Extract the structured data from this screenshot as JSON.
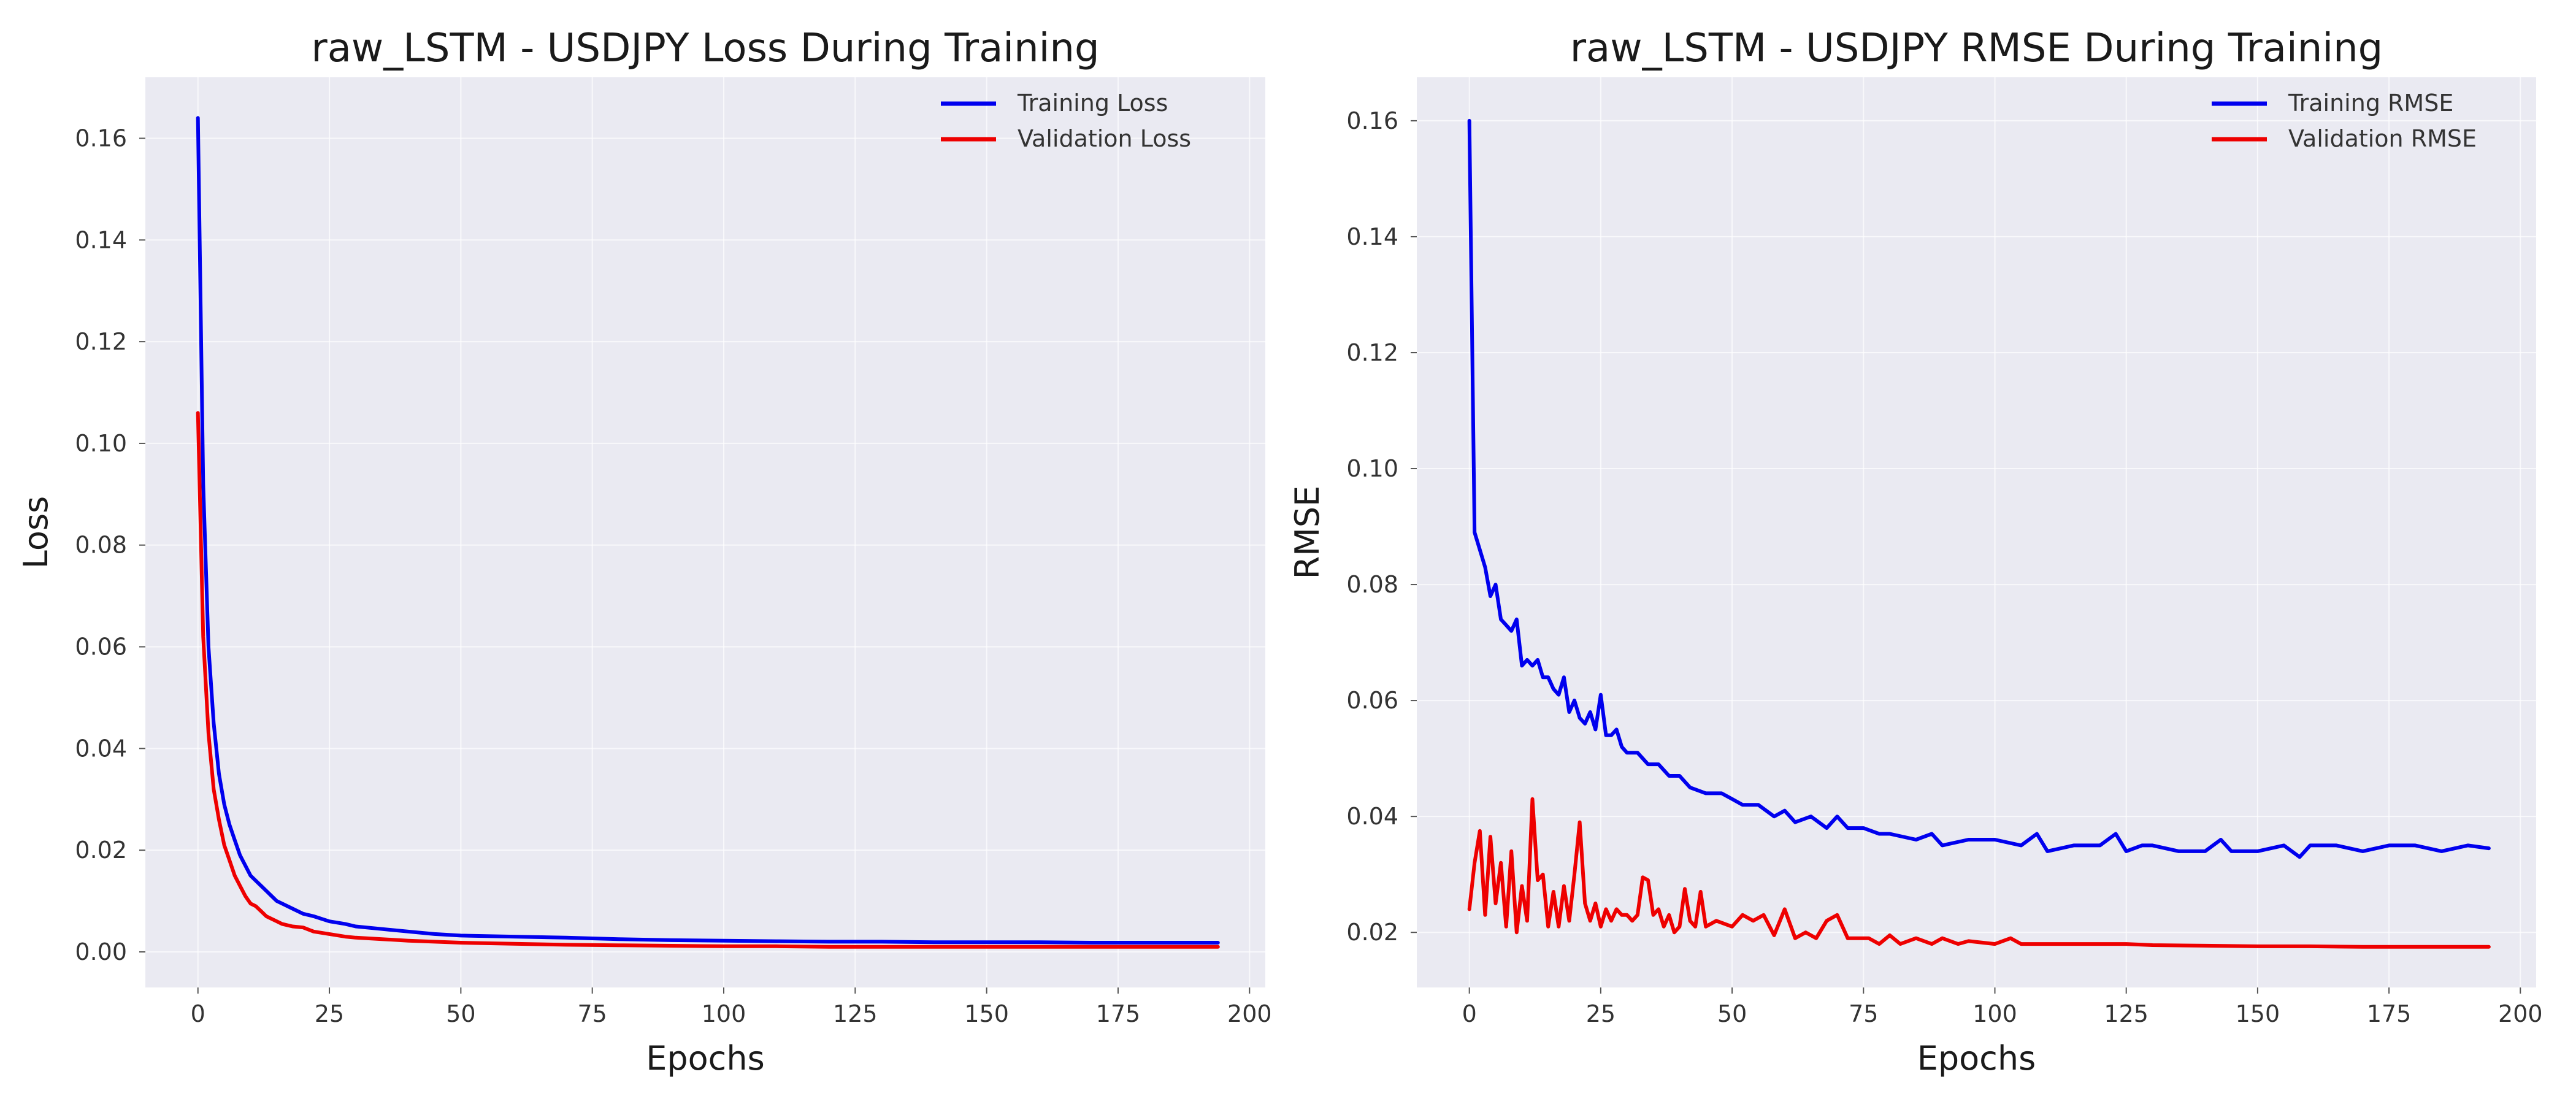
{
  "chart_data": [
    {
      "type": "line",
      "title": "raw_LSTM - USDJPY Loss During Training",
      "xlabel": "Epochs",
      "ylabel": "Loss",
      "xlim": [
        -10,
        203
      ],
      "ylim": [
        -0.007,
        0.172
      ],
      "xticks": [
        0,
        25,
        50,
        75,
        100,
        125,
        150,
        175,
        200
      ],
      "yticks": [
        0.0,
        0.02,
        0.04,
        0.06,
        0.08,
        0.1,
        0.12,
        0.14,
        0.16
      ],
      "tick_decimals": 2,
      "grid": true,
      "legend_position": "top-right",
      "series": [
        {
          "name": "Training Loss",
          "color": "#0000EE",
          "x": [
            0,
            1,
            2,
            3,
            4,
            5,
            6,
            7,
            8,
            9,
            10,
            11,
            12,
            13,
            14,
            15,
            16,
            18,
            20,
            22,
            25,
            28,
            30,
            35,
            40,
            45,
            50,
            60,
            70,
            80,
            90,
            100,
            110,
            120,
            130,
            140,
            150,
            160,
            170,
            180,
            190,
            194
          ],
          "y": [
            0.164,
            0.092,
            0.06,
            0.045,
            0.035,
            0.029,
            0.025,
            0.022,
            0.019,
            0.017,
            0.015,
            0.014,
            0.013,
            0.012,
            0.011,
            0.01,
            0.0095,
            0.0085,
            0.0075,
            0.007,
            0.006,
            0.0055,
            0.005,
            0.0045,
            0.004,
            0.0035,
            0.0032,
            0.003,
            0.0028,
            0.0025,
            0.0023,
            0.0022,
            0.0021,
            0.002,
            0.002,
            0.0019,
            0.0019,
            0.0019,
            0.0018,
            0.0018,
            0.0018,
            0.0018
          ]
        },
        {
          "name": "Validation Loss",
          "color": "#EE0000",
          "x": [
            0,
            1,
            2,
            3,
            4,
            5,
            6,
            7,
            8,
            9,
            10,
            11,
            12,
            13,
            14,
            15,
            16,
            18,
            20,
            22,
            25,
            28,
            30,
            35,
            40,
            45,
            50,
            60,
            70,
            80,
            90,
            100,
            110,
            120,
            130,
            140,
            150,
            160,
            170,
            180,
            190,
            194
          ],
          "y": [
            0.106,
            0.062,
            0.043,
            0.032,
            0.026,
            0.021,
            0.018,
            0.015,
            0.013,
            0.011,
            0.0095,
            0.009,
            0.008,
            0.007,
            0.0065,
            0.006,
            0.0055,
            0.005,
            0.0048,
            0.004,
            0.0035,
            0.003,
            0.0028,
            0.0025,
            0.0022,
            0.002,
            0.0018,
            0.0016,
            0.0014,
            0.0013,
            0.0012,
            0.0011,
            0.0011,
            0.001,
            0.001,
            0.001,
            0.001,
            0.001,
            0.001,
            0.001,
            0.001,
            0.001
          ]
        }
      ]
    },
    {
      "type": "line",
      "title": "raw_LSTM - USDJPY RMSE During Training",
      "xlabel": "Epochs",
      "ylabel": "RMSE",
      "xlim": [
        -10,
        203
      ],
      "ylim": [
        0.0105,
        0.1675
      ],
      "xticks": [
        0,
        25,
        50,
        75,
        100,
        125,
        150,
        175,
        200
      ],
      "yticks": [
        0.02,
        0.04,
        0.06,
        0.08,
        0.1,
        0.12,
        0.14,
        0.16
      ],
      "tick_decimals": 2,
      "grid": true,
      "legend_position": "top-right",
      "series": [
        {
          "name": "Training RMSE",
          "color": "#0000EE",
          "x": [
            0,
            1,
            2,
            3,
            4,
            5,
            6,
            7,
            8,
            9,
            10,
            11,
            12,
            13,
            14,
            15,
            16,
            17,
            18,
            19,
            20,
            21,
            22,
            23,
            24,
            25,
            26,
            27,
            28,
            29,
            30,
            32,
            34,
            36,
            38,
            40,
            42,
            45,
            48,
            50,
            52,
            55,
            58,
            60,
            62,
            65,
            68,
            70,
            72,
            75,
            78,
            80,
            85,
            88,
            90,
            95,
            100,
            105,
            108,
            110,
            115,
            120,
            123,
            125,
            128,
            130,
            135,
            140,
            143,
            145,
            150,
            155,
            158,
            160,
            165,
            170,
            175,
            180,
            185,
            190,
            194
          ],
          "y": [
            0.16,
            0.089,
            0.086,
            0.083,
            0.078,
            0.08,
            0.074,
            0.073,
            0.072,
            0.074,
            0.066,
            0.067,
            0.066,
            0.067,
            0.064,
            0.064,
            0.062,
            0.061,
            0.064,
            0.058,
            0.06,
            0.057,
            0.056,
            0.058,
            0.055,
            0.061,
            0.054,
            0.054,
            0.055,
            0.052,
            0.051,
            0.051,
            0.049,
            0.049,
            0.047,
            0.047,
            0.045,
            0.044,
            0.044,
            0.043,
            0.042,
            0.042,
            0.04,
            0.041,
            0.039,
            0.04,
            0.038,
            0.04,
            0.038,
            0.038,
            0.037,
            0.037,
            0.036,
            0.037,
            0.035,
            0.036,
            0.036,
            0.035,
            0.037,
            0.034,
            0.035,
            0.035,
            0.037,
            0.034,
            0.035,
            0.035,
            0.034,
            0.034,
            0.036,
            0.034,
            0.034,
            0.035,
            0.033,
            0.035,
            0.035,
            0.034,
            0.035,
            0.035,
            0.034,
            0.035,
            0.0345
          ]
        },
        {
          "name": "Validation RMSE",
          "color": "#EE0000",
          "x": [
            0,
            1,
            2,
            3,
            4,
            5,
            6,
            7,
            8,
            9,
            10,
            11,
            12,
            13,
            14,
            15,
            16,
            17,
            18,
            19,
            20,
            21,
            22,
            23,
            24,
            25,
            26,
            27,
            28,
            29,
            30,
            31,
            32,
            33,
            34,
            35,
            36,
            37,
            38,
            39,
            40,
            41,
            42,
            43,
            44,
            45,
            47,
            50,
            52,
            54,
            56,
            58,
            60,
            62,
            64,
            66,
            68,
            70,
            72,
            74,
            76,
            78,
            80,
            82,
            85,
            88,
            90,
            93,
            95,
            100,
            103,
            105,
            108,
            110,
            115,
            120,
            125,
            130,
            140,
            150,
            160,
            170,
            180,
            190,
            194
          ],
          "y": [
            0.024,
            0.032,
            0.0375,
            0.023,
            0.0365,
            0.025,
            0.032,
            0.021,
            0.034,
            0.02,
            0.028,
            0.022,
            0.043,
            0.029,
            0.03,
            0.021,
            0.027,
            0.021,
            0.028,
            0.022,
            0.03,
            0.039,
            0.025,
            0.022,
            0.025,
            0.021,
            0.024,
            0.022,
            0.024,
            0.023,
            0.023,
            0.022,
            0.023,
            0.0295,
            0.029,
            0.023,
            0.024,
            0.021,
            0.023,
            0.02,
            0.021,
            0.0275,
            0.022,
            0.021,
            0.027,
            0.021,
            0.022,
            0.021,
            0.023,
            0.022,
            0.023,
            0.0195,
            0.024,
            0.019,
            0.02,
            0.019,
            0.022,
            0.023,
            0.019,
            0.019,
            0.019,
            0.018,
            0.0195,
            0.018,
            0.019,
            0.018,
            0.019,
            0.018,
            0.0185,
            0.018,
            0.019,
            0.018,
            0.018,
            0.018,
            0.018,
            0.018,
            0.018,
            0.0178,
            0.0177,
            0.0176,
            0.0176,
            0.0175,
            0.0175,
            0.0175,
            0.0175
          ]
        }
      ]
    }
  ]
}
